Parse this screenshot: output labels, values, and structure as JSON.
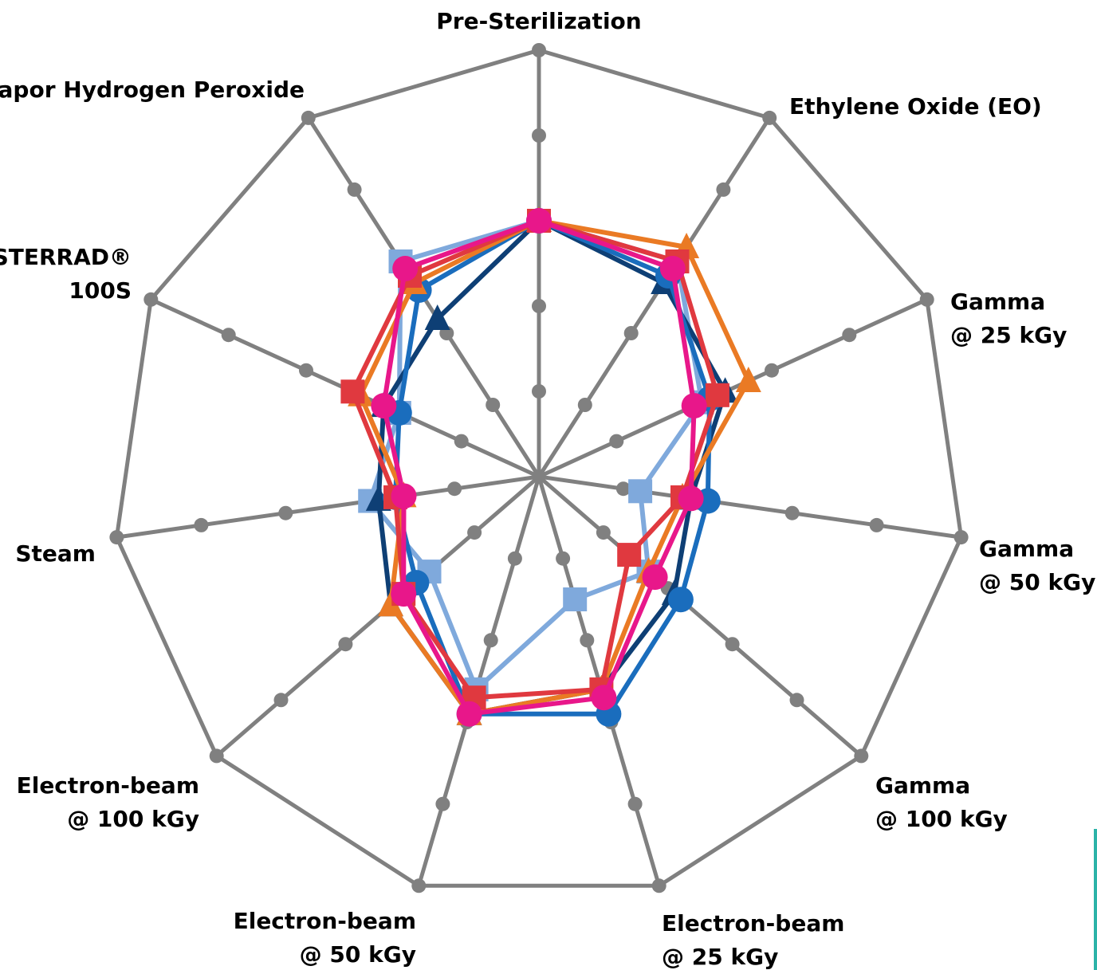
{
  "chart_data": {
    "type": "radar",
    "title": "",
    "scale": {
      "min": 0,
      "max": 5,
      "rings": 5
    },
    "axes": [
      {
        "lines": [
          "Pre-Sterilization"
        ]
      },
      {
        "lines": [
          "Ethylene Oxide (EO)"
        ]
      },
      {
        "lines": [
          "Gamma",
          "@ 25 kGy"
        ]
      },
      {
        "lines": [
          "Gamma",
          "@ 50 kGy"
        ]
      },
      {
        "lines": [
          "Gamma",
          "@ 100 kGy"
        ]
      },
      {
        "lines": [
          "Electron-beam",
          "@ 25 kGy"
        ]
      },
      {
        "lines": [
          "Electron-beam",
          "@ 50 kGy"
        ]
      },
      {
        "lines": [
          "Electron-beam",
          "@ 100 kGy"
        ]
      },
      {
        "lines": [
          "Steam"
        ]
      },
      {
        "lines": [
          "STERRAD®",
          "100S"
        ]
      },
      {
        "lines": [
          "Vapor Hydrogen Peroxide"
        ]
      }
    ],
    "series": [
      {
        "color": "#7fa9dc",
        "marker": "square",
        "values": [
          3.0,
          3.0,
          2.1,
          1.2,
          1.7,
          1.5,
          2.6,
          1.7,
          2.0,
          1.8,
          3.0
        ]
      },
      {
        "color": "#0e3f75",
        "marker": "triangle",
        "values": [
          3.0,
          2.7,
          2.4,
          1.8,
          2.1,
          2.6,
          2.9,
          2.3,
          1.9,
          2.0,
          2.2
        ]
      },
      {
        "color": "#1a6dbd",
        "marker": "circle",
        "values": [
          3.0,
          2.8,
          2.2,
          2.0,
          2.2,
          2.9,
          2.9,
          1.9,
          1.7,
          1.8,
          2.6
        ]
      },
      {
        "color": "#ea7a24",
        "marker": "triangle",
        "values": [
          3.0,
          3.2,
          2.7,
          1.7,
          1.7,
          2.6,
          2.9,
          2.3,
          1.6,
          2.3,
          2.7
        ]
      },
      {
        "color": "#e0393f",
        "marker": "square",
        "values": [
          3.0,
          3.0,
          2.3,
          1.7,
          1.4,
          2.6,
          2.7,
          2.1,
          1.7,
          2.4,
          2.8
        ]
      },
      {
        "color": "#e8178a",
        "marker": "circle",
        "values": [
          3.0,
          2.9,
          2.0,
          1.8,
          1.8,
          2.7,
          2.9,
          2.1,
          1.6,
          2.0,
          2.9
        ]
      }
    ],
    "grid": true,
    "grid_color": "#808080"
  }
}
